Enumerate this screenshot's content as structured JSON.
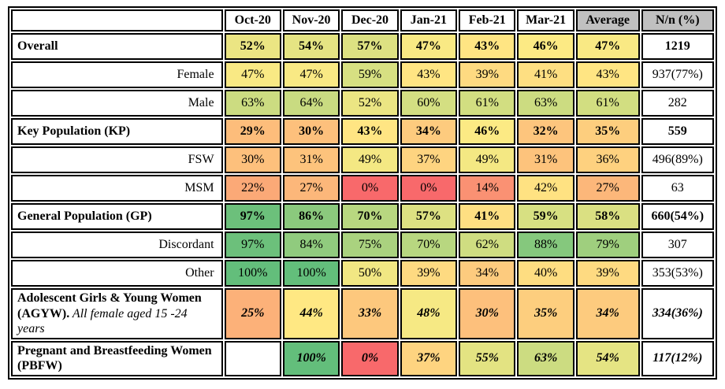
{
  "header": {
    "corner_label": "",
    "gray_color": "#C0C0C0"
  },
  "chart_data": {
    "type": "heatmap",
    "title": "",
    "columns": [
      "Oct-20",
      "Nov-20",
      "Dec-20",
      "Jan-21",
      "Feb-21",
      "Mar-21",
      "Average"
    ],
    "n_column": "N/n (%)",
    "value_suffix": "%",
    "rows": [
      {
        "label": "Overall",
        "style": "section",
        "row_class": "",
        "values": [
          52,
          54,
          57,
          47,
          43,
          46,
          47
        ],
        "nn": "1219"
      },
      {
        "label": "Female",
        "style": "sub",
        "row_class": "",
        "values": [
          47,
          47,
          59,
          43,
          39,
          41,
          43
        ],
        "nn": "937(77%)"
      },
      {
        "label": "Male",
        "style": "sub",
        "row_class": "",
        "values": [
          63,
          64,
          52,
          60,
          61,
          63,
          61
        ],
        "nn": "282"
      },
      {
        "label": "Key Population (KP)",
        "style": "section",
        "row_class": "",
        "values": [
          29,
          30,
          43,
          34,
          46,
          32,
          35
        ],
        "nn": "559"
      },
      {
        "label": "FSW",
        "style": "sub",
        "row_class": "",
        "values": [
          30,
          31,
          49,
          37,
          49,
          31,
          36
        ],
        "nn": "496(89%)"
      },
      {
        "label": "MSM",
        "style": "sub",
        "row_class": "",
        "values": [
          22,
          27,
          0,
          0,
          14,
          42,
          27
        ],
        "nn": "63"
      },
      {
        "label": "General Population (GP)",
        "style": "section",
        "row_class": "",
        "values": [
          97,
          86,
          70,
          57,
          41,
          59,
          58
        ],
        "nn": "660(54%)"
      },
      {
        "label": "Discordant",
        "style": "sub",
        "row_class": "",
        "values": [
          97,
          84,
          75,
          70,
          62,
          88,
          79
        ],
        "nn": "307"
      },
      {
        "label": "Other",
        "style": "sub",
        "row_class": "",
        "values": [
          100,
          100,
          50,
          39,
          34,
          40,
          39
        ],
        "nn": "353(53%)"
      },
      {
        "label": "Adolescent Girls & Young Women (AGYW).",
        "label_note": " All female aged 15 -24 years",
        "style": "section-italic",
        "row_class": "agyw",
        "values": [
          25,
          44,
          33,
          48,
          30,
          35,
          34
        ],
        "nn": "334(36%)"
      },
      {
        "label": "Pregnant and Breastfeeding Women (PBFW)",
        "style": "section-italic",
        "row_class": "pbfw",
        "values": [
          null,
          100,
          0,
          37,
          55,
          63,
          54
        ],
        "nn": "117(12%)"
      }
    ],
    "color_scale": {
      "min_value": 0,
      "min_color": "#F8696B",
      "mid_value": 45,
      "mid_color": "#FFEB84",
      "max_value": 100,
      "max_color": "#63BE7B",
      "empty_color": "#FFFFFF"
    },
    "layout": {
      "grid": true,
      "legend": false,
      "border_color": "#000000"
    }
  }
}
